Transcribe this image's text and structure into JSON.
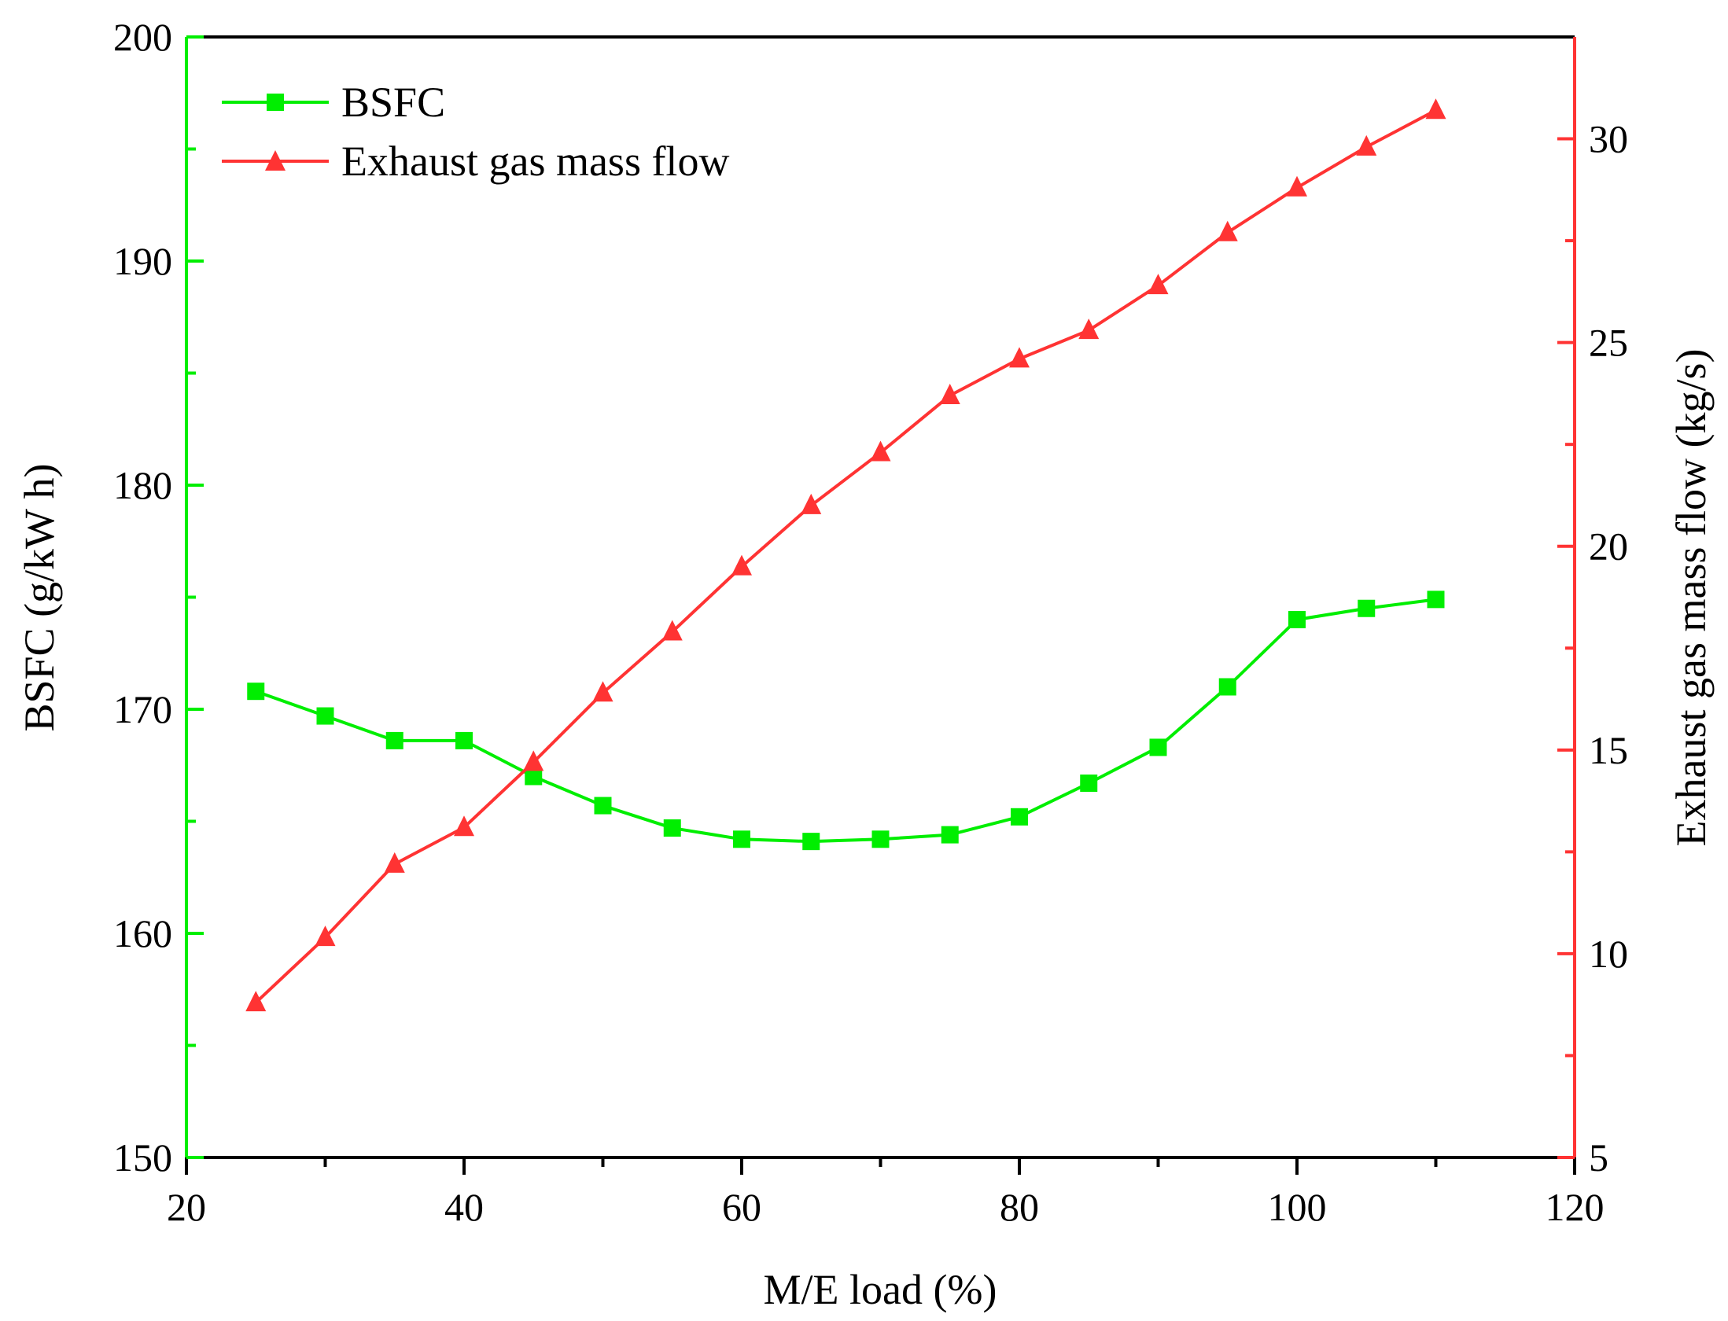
{
  "chart_data": {
    "type": "line",
    "x": [
      25,
      30,
      35,
      40,
      45,
      50,
      55,
      60,
      65,
      70,
      75,
      80,
      85,
      90,
      95,
      100,
      105,
      110
    ],
    "xlabel": "M/E load (%)",
    "xlim": [
      20,
      120
    ],
    "xticks": [
      20,
      40,
      60,
      80,
      100,
      120
    ],
    "ylabel": "BSFC (g/kW h)",
    "ylim": [
      150,
      200
    ],
    "yticks": [
      150,
      160,
      170,
      180,
      190,
      200
    ],
    "y2label": "Exhaust gas mass flow (kg/s)",
    "y2lim": [
      5,
      32.5
    ],
    "y2ticks": [
      5,
      10,
      15,
      20,
      25,
      30
    ],
    "grid": false,
    "legend_position": "top-left",
    "series": [
      {
        "name": "BSFC",
        "axis": "left",
        "color": "#00ee00",
        "marker": "square",
        "values": [
          170.8,
          169.7,
          168.6,
          168.6,
          167.0,
          165.7,
          164.7,
          164.2,
          164.1,
          164.2,
          164.4,
          165.2,
          166.7,
          168.3,
          171.0,
          174.0,
          174.5,
          174.9
        ]
      },
      {
        "name": "Exhaust gas mass flow",
        "axis": "right",
        "color": "#ff3333",
        "marker": "triangle",
        "values": [
          8.8,
          10.4,
          12.2,
          13.1,
          14.7,
          16.4,
          17.9,
          19.5,
          21.0,
          22.3,
          23.7,
          24.6,
          25.3,
          26.4,
          27.7,
          28.8,
          29.8,
          30.7
        ]
      }
    ]
  }
}
